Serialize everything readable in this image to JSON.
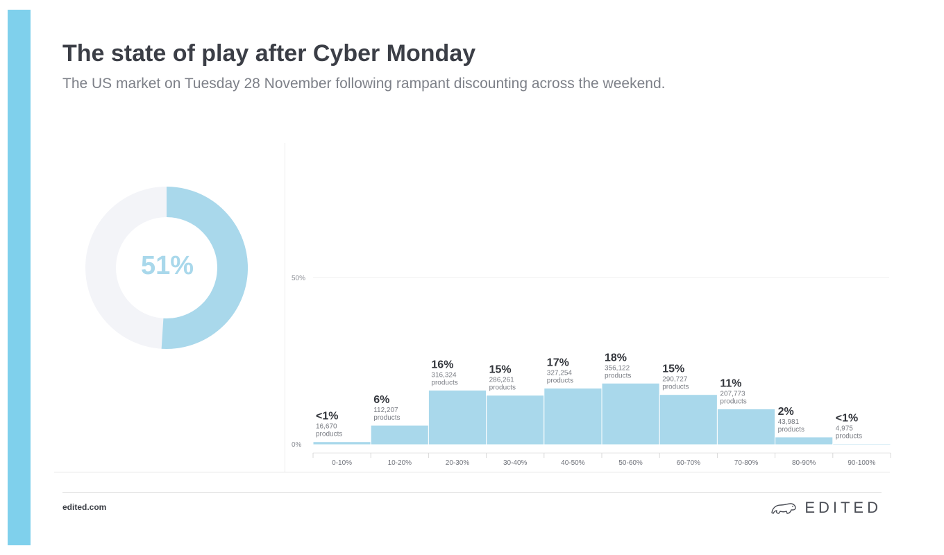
{
  "header": {
    "title": "The state of play after Cyber Monday",
    "subtitle": "The US market on Tuesday 28 November following rampant discounting across the weekend."
  },
  "colors": {
    "accent": "#7fd0ec",
    "bar": "#a9d8eb",
    "donut_track": "#f3f4f8",
    "donut_label": "#a9d8eb"
  },
  "donut": {
    "value": 51,
    "label": "51%"
  },
  "chart_data": {
    "type": "bar",
    "categories": [
      "0-10%",
      "10-20%",
      "20-30%",
      "30-40%",
      "40-50%",
      "50-60%",
      "60-70%",
      "70-80%",
      "80-90%",
      "90-100%"
    ],
    "values": [
      0.9,
      5.8,
      16.3,
      14.8,
      16.9,
      18.4,
      15.0,
      10.7,
      2.3,
      0.3
    ],
    "percent_labels": [
      "<1%",
      "6%",
      "16%",
      "15%",
      "17%",
      "18%",
      "15%",
      "11%",
      "2%",
      "<1%"
    ],
    "counts": [
      "16,670",
      "112,207",
      "316,324",
      "286,261",
      "327,254",
      "356,122",
      "290,727",
      "207,773",
      "43,981",
      "4,975"
    ],
    "unit_label": "products",
    "ylim": [
      0,
      50
    ],
    "yticks": [
      "0%",
      "50%"
    ],
    "grid": true
  },
  "footer": {
    "site": "edited.com",
    "brand": "EDITED",
    "brand_icon": "polar-bear-icon"
  }
}
